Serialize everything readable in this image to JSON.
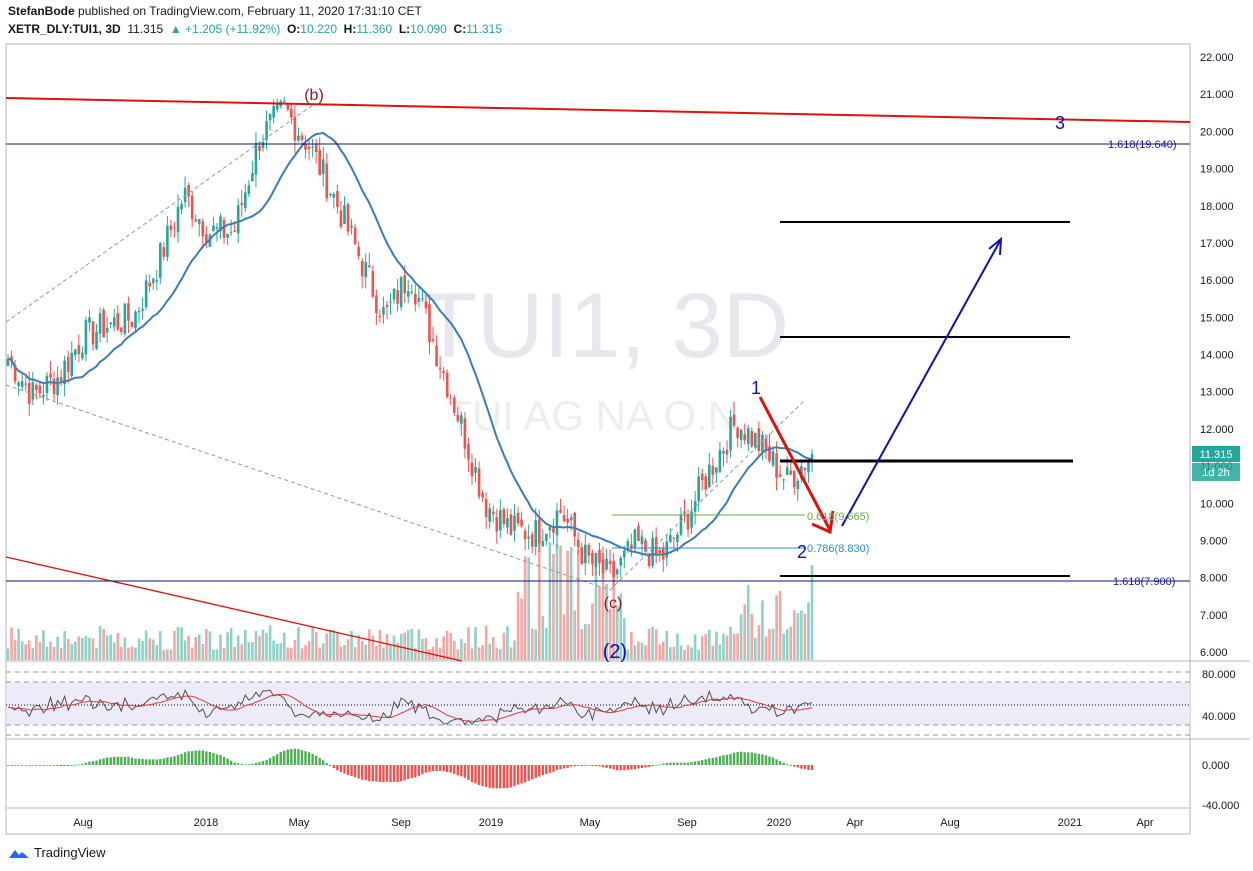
{
  "header": {
    "publisher": "StefanBode",
    "published_text": "published on TradingView.com, February 11, 2020 17:31:10 CET",
    "symbol": "XETR_DLY:TUI1, 3D",
    "last": "11.315",
    "change": "+1.205 (+11.92%)",
    "o_label": "O:",
    "o_value": "10.220",
    "h_label": "H:",
    "h_value": "11.360",
    "l_label": "L:",
    "l_value": "10.090",
    "c_label": "C:",
    "c_value": "11.315"
  },
  "watermark": {
    "line1": "TUI1, 3D",
    "line2": "TUI AG NA O.N."
  },
  "price_badge": {
    "value": "11.315",
    "countdown": "1d 2h"
  },
  "annotations": {
    "b": "(b)",
    "c": "(c)",
    "two_paren": "(2)",
    "one": "1",
    "two": "2",
    "three": "3",
    "fib_0618": "0.618(9.665)",
    "fib_0786": "0.786(8.830)",
    "fib_1618_top": "1.618(19.640)",
    "fib_1618_bot": "1.618(7.900)"
  },
  "colors": {
    "up": "#26a69a",
    "down": "#ef5350",
    "ma": "#3d7bb5",
    "trend": "#e01010",
    "wave": "#1010b0",
    "rsi": "#9598a1"
  },
  "footer": {
    "brand": "TradingView",
    "logo_icon": "tradingview-logo-icon"
  },
  "chart_data": {
    "type": "candlestick",
    "price_axis": {
      "ticks": [
        "22.000",
        "21.000",
        "20.000",
        "19.000",
        "18.000",
        "17.000",
        "16.000",
        "15.000",
        "14.000",
        "13.000",
        "12.000",
        "11.000",
        "10.000",
        "9.000",
        "8.000",
        "7.000",
        "6.000"
      ],
      "ylim": [
        5.8,
        22.3
      ]
    },
    "time_axis": {
      "ticks": [
        "Aug",
        "2018",
        "May",
        "Sep",
        "2019",
        "May",
        "Sep",
        "2020",
        "Apr",
        "Aug",
        "2021",
        "Apr"
      ]
    },
    "close_path": [
      [
        "2017-06",
        13.9
      ],
      [
        "2017-07",
        12.9
      ],
      [
        "2017-08",
        13.4
      ],
      [
        "2017-09",
        14.5
      ],
      [
        "2017-10",
        14.8
      ],
      [
        "2017-11",
        15.0
      ],
      [
        "2017-12",
        16.5
      ],
      [
        "2018-01",
        18.3
      ],
      [
        "2018-02",
        17.3
      ],
      [
        "2018-03",
        17.3
      ],
      [
        "2018-04",
        19.8
      ],
      [
        "2018-05",
        20.6
      ],
      [
        "2018-06",
        19.6
      ],
      [
        "2018-07",
        18.2
      ],
      [
        "2018-08",
        16.6
      ],
      [
        "2018-09",
        15.0
      ],
      [
        "2018-10",
        16.2
      ],
      [
        "2018-11",
        14.2
      ],
      [
        "2018-12",
        12.2
      ],
      [
        "2019-01",
        10.0
      ],
      [
        "2019-02",
        9.3
      ],
      [
        "2019-03",
        9.2
      ],
      [
        "2019-04",
        9.8
      ],
      [
        "2019-05",
        8.5
      ],
      [
        "2019-06",
        8.0
      ],
      [
        "2019-07",
        8.9
      ],
      [
        "2019-08",
        8.5
      ],
      [
        "2019-09",
        9.6
      ],
      [
        "2019-10",
        11.0
      ],
      [
        "2019-11",
        12.2
      ],
      [
        "2019-12",
        11.5
      ],
      [
        "2020-01",
        10.6
      ],
      [
        "2020-02",
        11.315
      ]
    ],
    "levels": [
      17.55,
      14.48,
      11.12,
      8.07
    ],
    "fib_levels": [
      {
        "label": "0.618",
        "value": 9.665
      },
      {
        "label": "0.786",
        "value": 8.83
      },
      {
        "label": "1.618",
        "value": 19.64
      },
      {
        "label": "1.618",
        "value": 7.9
      }
    ],
    "rsi_axis": {
      "ticks": [
        "80.000",
        "40.000"
      ]
    },
    "macd_axis": {
      "ticks": [
        "0.000",
        "-40.000"
      ]
    }
  }
}
